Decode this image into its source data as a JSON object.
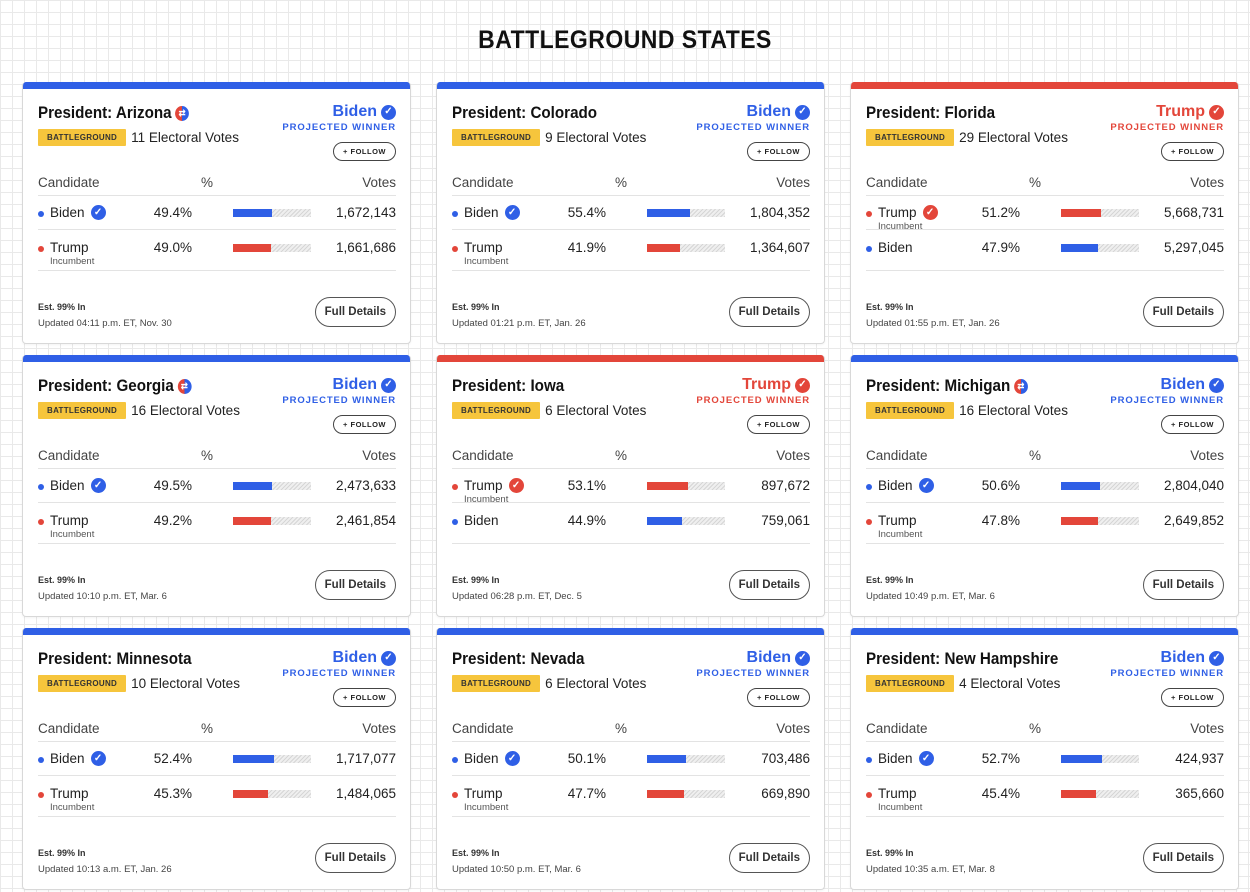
{
  "page": {
    "title": "BATTLEGROUND STATES"
  },
  "colors": {
    "dem": "#2f5fe6",
    "rep": "#e3463a",
    "badge": "#f6c53c"
  },
  "labels": {
    "badge": "BATTLEGROUND",
    "projected": "PROJECTED WINNER",
    "follow": "+ FOLLOW",
    "col_candidate": "Candidate",
    "col_pct": "%",
    "col_votes": "Votes",
    "est": "Est. 99% In",
    "details": "Full Details",
    "incumbent": "Incumbent"
  },
  "races": [
    {
      "title": "President: Arizona",
      "flipped": true,
      "winner": "Biden",
      "winner_party": "dem",
      "electoral_votes": "11 Electoral Votes",
      "candidates": [
        {
          "name": "Biden",
          "party": "dem",
          "incumbent": false,
          "winner": true,
          "pct": "49.4%",
          "share": 0.494,
          "votes": "1,672,143"
        },
        {
          "name": "Trump",
          "party": "rep",
          "incumbent": true,
          "winner": false,
          "pct": "49.0%",
          "share": 0.49,
          "votes": "1,661,686"
        }
      ],
      "updated": "Updated 04:11 p.m. ET, Nov. 30"
    },
    {
      "title": "President: Colorado",
      "flipped": false,
      "winner": "Biden",
      "winner_party": "dem",
      "electoral_votes": "9 Electoral Votes",
      "candidates": [
        {
          "name": "Biden",
          "party": "dem",
          "incumbent": false,
          "winner": true,
          "pct": "55.4%",
          "share": 0.554,
          "votes": "1,804,352"
        },
        {
          "name": "Trump",
          "party": "rep",
          "incumbent": true,
          "winner": false,
          "pct": "41.9%",
          "share": 0.419,
          "votes": "1,364,607"
        }
      ],
      "updated": "Updated 01:21 p.m. ET, Jan. 26"
    },
    {
      "title": "President: Florida",
      "flipped": false,
      "winner": "Trump",
      "winner_party": "rep",
      "electoral_votes": "29 Electoral Votes",
      "candidates": [
        {
          "name": "Trump",
          "party": "rep",
          "incumbent": true,
          "winner": true,
          "pct": "51.2%",
          "share": 0.512,
          "votes": "5,668,731"
        },
        {
          "name": "Biden",
          "party": "dem",
          "incumbent": false,
          "winner": false,
          "pct": "47.9%",
          "share": 0.479,
          "votes": "5,297,045"
        }
      ],
      "updated": "Updated 01:55 p.m. ET, Jan. 26"
    },
    {
      "title": "President: Georgia",
      "flipped": true,
      "winner": "Biden",
      "winner_party": "dem",
      "electoral_votes": "16 Electoral Votes",
      "candidates": [
        {
          "name": "Biden",
          "party": "dem",
          "incumbent": false,
          "winner": true,
          "pct": "49.5%",
          "share": 0.495,
          "votes": "2,473,633"
        },
        {
          "name": "Trump",
          "party": "rep",
          "incumbent": true,
          "winner": false,
          "pct": "49.2%",
          "share": 0.492,
          "votes": "2,461,854"
        }
      ],
      "updated": "Updated 10:10 p.m. ET, Mar. 6"
    },
    {
      "title": "President: Iowa",
      "flipped": false,
      "winner": "Trump",
      "winner_party": "rep",
      "electoral_votes": "6 Electoral Votes",
      "candidates": [
        {
          "name": "Trump",
          "party": "rep",
          "incumbent": true,
          "winner": true,
          "pct": "53.1%",
          "share": 0.531,
          "votes": "897,672"
        },
        {
          "name": "Biden",
          "party": "dem",
          "incumbent": false,
          "winner": false,
          "pct": "44.9%",
          "share": 0.449,
          "votes": "759,061"
        }
      ],
      "updated": "Updated 06:28 p.m. ET, Dec. 5"
    },
    {
      "title": "President: Michigan",
      "flipped": true,
      "winner": "Biden",
      "winner_party": "dem",
      "electoral_votes": "16 Electoral Votes",
      "candidates": [
        {
          "name": "Biden",
          "party": "dem",
          "incumbent": false,
          "winner": true,
          "pct": "50.6%",
          "share": 0.506,
          "votes": "2,804,040"
        },
        {
          "name": "Trump",
          "party": "rep",
          "incumbent": true,
          "winner": false,
          "pct": "47.8%",
          "share": 0.478,
          "votes": "2,649,852"
        }
      ],
      "updated": "Updated 10:49 p.m. ET, Mar. 6"
    },
    {
      "title": "President: Minnesota",
      "flipped": false,
      "winner": "Biden",
      "winner_party": "dem",
      "electoral_votes": "10 Electoral Votes",
      "candidates": [
        {
          "name": "Biden",
          "party": "dem",
          "incumbent": false,
          "winner": true,
          "pct": "52.4%",
          "share": 0.524,
          "votes": "1,717,077"
        },
        {
          "name": "Trump",
          "party": "rep",
          "incumbent": true,
          "winner": false,
          "pct": "45.3%",
          "share": 0.453,
          "votes": "1,484,065"
        }
      ],
      "updated": "Updated 10:13 a.m. ET, Jan. 26"
    },
    {
      "title": "President: Nevada",
      "flipped": false,
      "winner": "Biden",
      "winner_party": "dem",
      "electoral_votes": "6 Electoral Votes",
      "candidates": [
        {
          "name": "Biden",
          "party": "dem",
          "incumbent": false,
          "winner": true,
          "pct": "50.1%",
          "share": 0.501,
          "votes": "703,486"
        },
        {
          "name": "Trump",
          "party": "rep",
          "incumbent": true,
          "winner": false,
          "pct": "47.7%",
          "share": 0.477,
          "votes": "669,890"
        }
      ],
      "updated": "Updated 10:50 p.m. ET, Mar. 6"
    },
    {
      "title": "President: New Hampshire",
      "flipped": false,
      "winner": "Biden",
      "winner_party": "dem",
      "electoral_votes": "4 Electoral Votes",
      "candidates": [
        {
          "name": "Biden",
          "party": "dem",
          "incumbent": false,
          "winner": true,
          "pct": "52.7%",
          "share": 0.527,
          "votes": "424,937"
        },
        {
          "name": "Trump",
          "party": "rep",
          "incumbent": true,
          "winner": false,
          "pct": "45.4%",
          "share": 0.454,
          "votes": "365,660"
        }
      ],
      "updated": "Updated 10:35 a.m. ET, Mar. 8"
    }
  ]
}
